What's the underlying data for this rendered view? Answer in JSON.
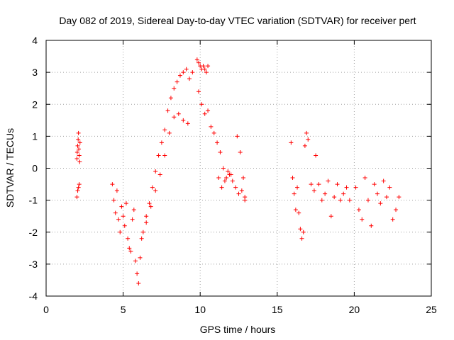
{
  "chart_data": {
    "type": "scatter",
    "title": "Day 082 of 2019, Sidereal Day-to-day VTEC variation (SDTVAR) for receiver pert",
    "xlabel": "GPS time / hours",
    "ylabel": "SDTVAR / TECUs",
    "xlim": [
      0,
      25
    ],
    "ylim": [
      -4,
      4
    ],
    "xticks": [
      0,
      5,
      10,
      15,
      20,
      25
    ],
    "yticks": [
      -4,
      -3,
      -2,
      -1,
      0,
      1,
      2,
      3,
      4
    ],
    "grid": true,
    "marker": "+",
    "color": "#ff0000",
    "segments": [
      {
        "name": "seg-2h-a",
        "x": [
          2.0,
          2.02,
          2.05,
          2.08,
          2.1,
          2.12,
          2.15,
          2.18,
          2.2
        ],
        "y": [
          0.3,
          0.5,
          0.7,
          0.9,
          1.1,
          0.6,
          0.4,
          0.2,
          0.8
        ]
      },
      {
        "name": "seg-2h-b",
        "x": [
          2.0,
          2.05,
          2.1,
          2.15
        ],
        "y": [
          -0.9,
          -0.7,
          -0.6,
          -0.5
        ]
      },
      {
        "name": "seg-4-6h",
        "x": [
          4.3,
          4.4,
          4.5,
          4.6,
          4.7,
          4.8,
          4.9,
          5.0,
          5.1,
          5.2,
          5.3,
          5.4,
          5.5,
          5.6,
          5.7,
          5.8,
          5.9,
          6.0,
          6.1,
          6.2
        ],
        "y": [
          -0.5,
          -1.0,
          -1.4,
          -0.7,
          -1.6,
          -2.0,
          -1.2,
          -1.5,
          -1.8,
          -1.1,
          -2.2,
          -2.5,
          -2.6,
          -1.6,
          -1.3,
          -2.9,
          -3.3,
          -3.6,
          -2.8,
          -2.2
        ]
      },
      {
        "name": "seg-rise",
        "x": [
          6.3,
          6.5,
          6.7,
          6.9,
          7.1,
          7.3,
          7.5,
          7.7,
          7.9,
          8.1,
          8.3,
          8.5,
          8.7,
          8.9,
          9.1,
          9.3,
          9.5
        ],
        "y": [
          -2.0,
          -1.5,
          -1.1,
          -0.6,
          -0.1,
          0.4,
          0.8,
          1.2,
          1.8,
          2.2,
          2.5,
          2.7,
          2.9,
          3.0,
          3.1,
          2.8,
          3.0
        ]
      },
      {
        "name": "seg-lower-branch",
        "x": [
          6.5,
          6.8,
          7.1,
          7.4,
          7.7,
          8.0,
          8.3,
          8.6,
          8.9,
          9.2
        ],
        "y": [
          -1.7,
          -1.2,
          -0.7,
          -0.2,
          0.4,
          1.1,
          1.6,
          1.7,
          1.5,
          1.4
        ]
      },
      {
        "name": "seg-peak",
        "x": [
          9.8,
          9.9,
          10.0,
          10.1,
          10.2,
          10.3,
          10.4,
          10.5
        ],
        "y": [
          3.4,
          3.3,
          3.2,
          3.1,
          3.2,
          3.1,
          3.0,
          3.2
        ]
      },
      {
        "name": "seg-fall",
        "x": [
          9.9,
          10.1,
          10.3,
          10.5,
          10.7,
          10.9,
          11.1,
          11.3,
          11.5,
          11.7,
          11.9,
          12.1,
          12.3,
          12.5,
          12.7,
          12.9
        ],
        "y": [
          2.4,
          2.0,
          1.7,
          1.8,
          1.3,
          1.1,
          0.8,
          0.5,
          0.0,
          -0.3,
          -0.2,
          -0.4,
          -0.6,
          -0.8,
          -0.7,
          -0.9
        ]
      },
      {
        "name": "seg-11-13h",
        "x": [
          11.2,
          11.4,
          11.6,
          11.8,
          12.0,
          12.4,
          12.6,
          12.8,
          12.9
        ],
        "y": [
          -0.3,
          -0.6,
          -0.4,
          -0.1,
          -0.2,
          1.0,
          0.5,
          -0.3,
          -1.0
        ]
      },
      {
        "name": "seg-16-17h",
        "x": [
          15.9,
          16.0,
          16.1,
          16.2,
          16.3,
          16.4,
          16.5,
          16.6,
          16.7,
          16.8,
          16.9,
          17.0,
          17.2,
          17.4
        ],
        "y": [
          0.8,
          -0.3,
          -0.8,
          -1.3,
          -0.6,
          -1.4,
          -1.9,
          -2.2,
          -2.0,
          0.7,
          1.1,
          0.9,
          -0.5,
          -0.7
        ]
      },
      {
        "name": "seg-17-20h",
        "x": [
          17.5,
          17.7,
          17.9,
          18.1,
          18.3,
          18.5,
          18.7,
          18.9,
          19.1,
          19.3,
          19.5,
          19.7
        ],
        "y": [
          0.4,
          -0.5,
          -1.0,
          -0.8,
          -0.4,
          -1.5,
          -0.9,
          -0.5,
          -1.0,
          -0.8,
          -0.6,
          -1.0
        ]
      },
      {
        "name": "seg-20-23h",
        "x": [
          20.1,
          20.3,
          20.5,
          20.7,
          20.9,
          21.1,
          21.3,
          21.5,
          21.7,
          21.9,
          22.1,
          22.3,
          22.5,
          22.7,
          22.9
        ],
        "y": [
          -0.6,
          -1.3,
          -1.6,
          -0.3,
          -1.0,
          -1.8,
          -0.5,
          -0.8,
          -1.1,
          -0.4,
          -0.9,
          -0.6,
          -1.6,
          -1.3,
          -0.9
        ]
      }
    ]
  }
}
